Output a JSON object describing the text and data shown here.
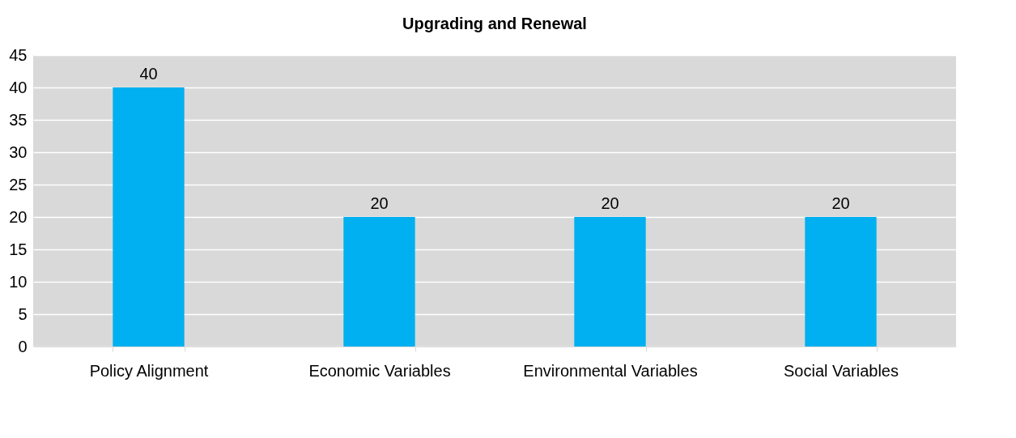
{
  "chart_data": {
    "type": "bar",
    "title": "Upgrading and Renewal",
    "categories": [
      "Policy Alignment",
      "Economic Variables",
      "Environmental Variables",
      "Social Variables"
    ],
    "values": [
      40,
      20,
      20,
      20
    ],
    "color": "#00b0f0",
    "ylim": [
      0,
      45
    ],
    "yticks": [
      0,
      5,
      10,
      15,
      20,
      25,
      30,
      35,
      40,
      45
    ],
    "grid": "y",
    "data_labels": true
  }
}
